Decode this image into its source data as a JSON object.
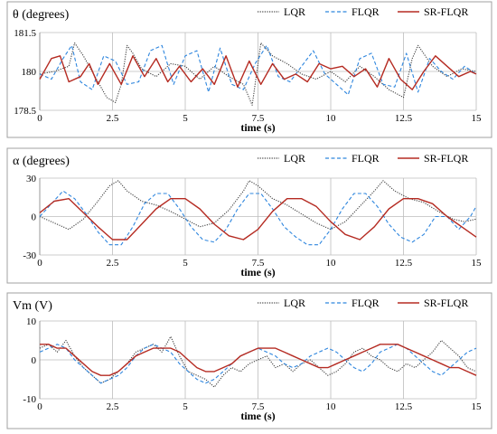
{
  "x_unit_label": "time (s)",
  "legend_labels": [
    "LQR",
    "FLQR",
    "SR-FLQR"
  ],
  "colors": {
    "LQR": "#404040",
    "FLQR": "#2e86de",
    "SR-FLQR": "#b52b22",
    "frame": "#a0a0a0",
    "grid": "#bdbdbd",
    "text": "#000000"
  },
  "chart_data": [
    {
      "type": "line",
      "title": "θ (degrees)",
      "xlabel": "time (s)",
      "ylabel": "θ (degrees)",
      "xlim": [
        0,
        15
      ],
      "ylim": [
        178.5,
        181.5
      ],
      "x_ticks": [
        0,
        2.5,
        5,
        7.5,
        10,
        12.5,
        15
      ],
      "x_tick_labels": [
        "0",
        "2.5",
        "5",
        "7.5",
        "10",
        "12.5",
        "15"
      ],
      "y_ticks": [
        178.5,
        180,
        181.5
      ],
      "y_tick_labels": [
        "178.5",
        "180",
        "181.5"
      ],
      "grid": true,
      "legend": "top-right",
      "series": [
        {
          "name": "LQR",
          "style": "dotted",
          "x": [
            0,
            0.5,
            1,
            1.2,
            1.5,
            2,
            2.3,
            2.6,
            2.8,
            3,
            3.2,
            3.5,
            4,
            4.5,
            5,
            5.5,
            6,
            6.5,
            7,
            7.3,
            7.6,
            8,
            8.5,
            9,
            9.5,
            10,
            10.5,
            11,
            11.5,
            12,
            12.5,
            12.8,
            13,
            13.5,
            14,
            14.5,
            15
          ],
          "y": [
            179.9,
            180.0,
            180.2,
            181.1,
            180.6,
            179.6,
            179.0,
            178.8,
            179.5,
            181.0,
            180.7,
            180.1,
            179.8,
            180.3,
            180.2,
            179.7,
            180.2,
            179.8,
            179.5,
            178.7,
            181.1,
            180.6,
            180.3,
            179.9,
            179.7,
            180.0,
            179.6,
            180.2,
            179.8,
            179.3,
            179.0,
            180.5,
            181.0,
            180.2,
            179.8,
            180.1,
            180.0
          ]
        },
        {
          "name": "FLQR",
          "style": "dashed",
          "x": [
            0,
            0.4,
            0.8,
            1.1,
            1.4,
            1.8,
            2.2,
            2.6,
            3,
            3.4,
            3.8,
            4.2,
            4.6,
            5,
            5.4,
            5.8,
            6.2,
            6.6,
            7,
            7.4,
            7.8,
            8.2,
            8.6,
            9,
            9.4,
            9.8,
            10.2,
            10.6,
            11,
            11.4,
            11.8,
            12.2,
            12.6,
            13,
            13.4,
            13.8,
            14.2,
            14.6,
            15
          ],
          "y": [
            179.9,
            179.7,
            180.5,
            181.0,
            179.6,
            179.3,
            180.6,
            180.4,
            179.5,
            179.6,
            180.8,
            181.0,
            179.5,
            180.6,
            180.8,
            179.2,
            180.9,
            179.5,
            179.3,
            180.3,
            181.0,
            179.8,
            179.6,
            180.2,
            180.8,
            179.9,
            179.5,
            179.1,
            180.5,
            180.7,
            179.5,
            179.4,
            180.7,
            179.2,
            180.5,
            180.0,
            179.7,
            180.2,
            179.9
          ]
        },
        {
          "name": "SR-FLQR",
          "style": "solid",
          "x": [
            0,
            0.4,
            0.7,
            1.0,
            1.4,
            1.7,
            2.0,
            2.4,
            2.8,
            3.2,
            3.6,
            4.0,
            4.4,
            4.8,
            5.2,
            5.6,
            6.0,
            6.4,
            6.8,
            7.2,
            7.6,
            8.0,
            8.4,
            8.8,
            9.2,
            9.6,
            10.0,
            10.4,
            10.8,
            11.2,
            11.6,
            12.0,
            12.4,
            12.8,
            13.2,
            13.6,
            14.0,
            14.4,
            14.8,
            15
          ],
          "y": [
            179.7,
            180.5,
            180.6,
            179.6,
            179.8,
            180.3,
            179.5,
            180.3,
            179.5,
            180.6,
            179.8,
            180.5,
            179.6,
            180.2,
            179.6,
            180.1,
            179.5,
            180.6,
            179.4,
            180.4,
            179.5,
            180.3,
            179.7,
            179.9,
            179.6,
            180.3,
            180.1,
            180.2,
            179.8,
            180.1,
            179.4,
            180.5,
            179.7,
            179.3,
            180.0,
            180.6,
            180.2,
            179.8,
            180.0,
            179.9
          ]
        }
      ]
    },
    {
      "type": "line",
      "title": "α (degrees)",
      "xlabel": "time (s)",
      "ylabel": "α (degrees)",
      "xlim": [
        0,
        15
      ],
      "ylim": [
        -30,
        30
      ],
      "x_ticks": [
        0,
        2.5,
        5,
        7.5,
        10,
        12.5,
        15
      ],
      "x_tick_labels": [
        "0",
        "2.5",
        "5",
        "7.5",
        "10",
        "12.5",
        "15"
      ],
      "y_ticks": [
        -30,
        0,
        30
      ],
      "y_tick_labels": [
        "-30",
        "0",
        "30"
      ],
      "grid": true,
      "legend": "top-right",
      "series": [
        {
          "name": "LQR",
          "style": "dotted",
          "x": [
            0,
            0.5,
            1.0,
            1.5,
            2.0,
            2.4,
            2.7,
            3.0,
            3.5,
            4.0,
            4.5,
            5.0,
            5.5,
            6.0,
            6.5,
            7.0,
            7.2,
            7.5,
            8.0,
            8.5,
            9.0,
            9.5,
            10.0,
            10.5,
            11.0,
            11.5,
            11.8,
            12.2,
            12.7,
            13.2,
            13.7,
            14.2,
            14.6,
            15.0
          ],
          "y": [
            0,
            -5,
            -10,
            -2,
            12,
            24,
            28,
            20,
            12,
            9,
            4,
            -2,
            -8,
            -5,
            5,
            20,
            28,
            24,
            14,
            9,
            2,
            -5,
            -10,
            -4,
            8,
            20,
            28,
            20,
            14,
            11,
            4,
            -2,
            -4,
            -2
          ]
        },
        {
          "name": "FLQR",
          "style": "dashed",
          "x": [
            0,
            0.4,
            0.8,
            1.2,
            1.6,
            2.0,
            2.4,
            2.8,
            3.2,
            3.6,
            4.0,
            4.4,
            4.8,
            5.2,
            5.6,
            6.0,
            6.4,
            6.8,
            7.2,
            7.6,
            8.0,
            8.4,
            8.8,
            9.2,
            9.6,
            10.0,
            10.4,
            10.8,
            11.2,
            11.6,
            12.0,
            12.4,
            12.8,
            13.2,
            13.6,
            14.0,
            14.4,
            14.8,
            15.0
          ],
          "y": [
            0,
            10,
            20,
            14,
            2,
            -12,
            -22,
            -22,
            -8,
            10,
            18,
            18,
            6,
            -8,
            -18,
            -20,
            -10,
            6,
            18,
            18,
            6,
            -8,
            -16,
            -22,
            -22,
            -10,
            6,
            18,
            18,
            8,
            -6,
            -16,
            -20,
            -14,
            0,
            0,
            -10,
            0,
            8
          ]
        },
        {
          "name": "SR-FLQR",
          "style": "solid",
          "x": [
            0,
            0.5,
            1.0,
            1.5,
            2.0,
            2.5,
            3.0,
            3.5,
            4.0,
            4.5,
            5.0,
            5.5,
            6.0,
            6.5,
            7.0,
            7.5,
            8.0,
            8.5,
            9.0,
            9.5,
            10.0,
            10.5,
            11.0,
            11.5,
            12.0,
            12.5,
            13.0,
            13.5,
            14.0,
            14.5,
            15.0
          ],
          "y": [
            3,
            12,
            14,
            3,
            -8,
            -18,
            -18,
            -6,
            6,
            14,
            14,
            6,
            -6,
            -15,
            -18,
            -10,
            4,
            14,
            14,
            8,
            -4,
            -14,
            -18,
            -8,
            6,
            14,
            14,
            10,
            0,
            -8,
            -16
          ]
        }
      ]
    },
    {
      "type": "line",
      "title": "Vm (V)",
      "xlabel": "time (s)",
      "ylabel": "Vm (V)",
      "xlim": [
        0,
        15
      ],
      "ylim": [
        -10,
        10
      ],
      "x_ticks": [
        0,
        2.5,
        5,
        7.5,
        10,
        12.5,
        15
      ],
      "x_tick_labels": [
        "0",
        "2.5",
        "5",
        "7.5",
        "10",
        "12.5",
        "15"
      ],
      "y_ticks": [
        -10,
        0,
        10
      ],
      "y_tick_labels": [
        "-10",
        "0",
        "10"
      ],
      "grid": true,
      "legend": "top-right",
      "series": [
        {
          "name": "LQR",
          "style": "dotted",
          "x": [
            0,
            0.3,
            0.6,
            0.9,
            1.2,
            1.5,
            1.8,
            2.1,
            2.4,
            2.7,
            3.0,
            3.3,
            3.6,
            3.9,
            4.2,
            4.5,
            4.8,
            5.1,
            5.4,
            5.7,
            6.0,
            6.3,
            6.6,
            6.9,
            7.2,
            7.5,
            7.8,
            8.1,
            8.4,
            8.7,
            9.0,
            9.3,
            9.6,
            9.9,
            10.2,
            10.5,
            10.8,
            11.1,
            11.4,
            11.7,
            12.0,
            12.3,
            12.6,
            12.9,
            13.2,
            13.5,
            13.8,
            14.1,
            14.4,
            14.7,
            15.0
          ],
          "y": [
            3,
            4,
            2,
            5,
            1,
            -2,
            -4,
            -6,
            -5,
            -3,
            -1,
            2,
            3,
            4,
            2,
            6,
            1,
            -3,
            -4,
            -5,
            -7,
            -4,
            -2,
            -3,
            -1,
            0,
            1,
            -2,
            -1,
            -3,
            -1,
            0,
            -2,
            -4,
            -3,
            -1,
            2,
            3,
            1,
            0,
            -2,
            -3,
            -1,
            -2,
            0,
            2,
            5,
            3,
            1,
            -2,
            -3
          ]
        },
        {
          "name": "FLQR",
          "style": "dashed",
          "x": [
            0,
            0.3,
            0.6,
            0.9,
            1.2,
            1.5,
            1.8,
            2.1,
            2.4,
            2.7,
            3.0,
            3.3,
            3.6,
            3.9,
            4.2,
            4.5,
            4.8,
            5.1,
            5.4,
            5.7,
            6.0,
            6.3,
            6.6,
            6.9,
            7.2,
            7.5,
            7.8,
            8.1,
            8.4,
            8.7,
            9.0,
            9.3,
            9.6,
            9.9,
            10.2,
            10.5,
            10.8,
            11.1,
            11.4,
            11.7,
            12.0,
            12.3,
            12.6,
            12.9,
            13.2,
            13.5,
            13.8,
            14.1,
            14.4,
            14.7,
            15.0
          ],
          "y": [
            2,
            3,
            4,
            3,
            0,
            -2,
            -4,
            -6,
            -5,
            -4,
            -2,
            1,
            3,
            4,
            3,
            2,
            -1,
            -3,
            -5,
            -6,
            -5,
            -3,
            -1,
            1,
            2,
            3,
            2,
            1,
            -1,
            -2,
            -1,
            1,
            2,
            3,
            2,
            0,
            -2,
            -3,
            -1,
            2,
            3,
            4,
            3,
            1,
            -1,
            -3,
            -4,
            -2,
            0,
            2,
            3
          ]
        },
        {
          "name": "SR-FLQR",
          "style": "solid",
          "x": [
            0,
            0.3,
            0.6,
            0.9,
            1.2,
            1.5,
            1.8,
            2.1,
            2.4,
            2.7,
            3.0,
            3.3,
            3.6,
            3.9,
            4.2,
            4.5,
            4.8,
            5.1,
            5.4,
            5.7,
            6.0,
            6.3,
            6.6,
            6.9,
            7.2,
            7.5,
            7.8,
            8.1,
            8.4,
            8.7,
            9.0,
            9.3,
            9.6,
            9.9,
            10.2,
            10.5,
            10.8,
            11.1,
            11.4,
            11.7,
            12.0,
            12.3,
            12.6,
            12.9,
            13.2,
            13.5,
            13.8,
            14.1,
            14.4,
            14.7,
            15.0
          ],
          "y": [
            4,
            4,
            3,
            3,
            1,
            -1,
            -3,
            -4,
            -4,
            -3,
            -1,
            1,
            2,
            3,
            3,
            3,
            2,
            0,
            -2,
            -3,
            -3,
            -2,
            -1,
            1,
            2,
            3,
            3,
            3,
            2,
            1,
            0,
            -1,
            -2,
            -2,
            -1,
            0,
            1,
            2,
            3,
            4,
            4,
            4,
            3,
            2,
            1,
            0,
            -1,
            -2,
            -2,
            -3,
            -4
          ]
        }
      ]
    }
  ]
}
